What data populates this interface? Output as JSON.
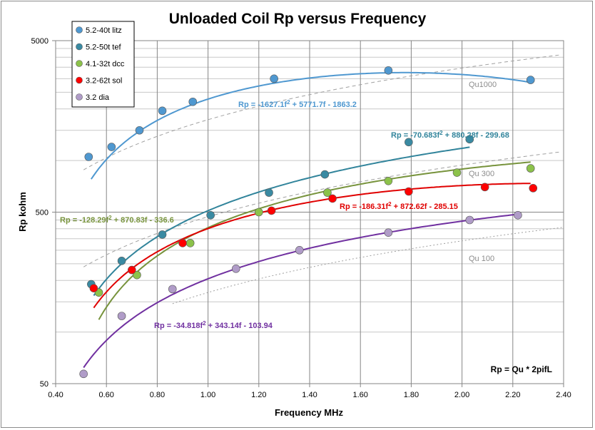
{
  "chart_data": {
    "type": "scatter",
    "title": "Unloaded Coil Rp versus Frequency",
    "xlabel": "Frequency  MHz",
    "ylabel": "Rp  kohm",
    "xlim": [
      0.4,
      2.4
    ],
    "ylim": [
      50,
      5000
    ],
    "yscale": "log",
    "x_ticks": [
      "0.40",
      "0.60",
      "0.80",
      "1.00",
      "1.20",
      "1.40",
      "1.60",
      "1.80",
      "2.00",
      "2.20",
      "2.40"
    ],
    "y_ticks": [
      "50",
      "500",
      "5000"
    ],
    "grid": true,
    "legend_position": "top-left",
    "formula_note": "Rp = Qu * 2pifL",
    "series": [
      {
        "name": "5.2-40t litz",
        "color": "#4f98d0",
        "curve_color": "#4f98d0",
        "x": [
          0.53,
          0.62,
          0.73,
          0.82,
          0.94,
          1.26,
          1.71,
          2.27
        ],
        "y": [
          1050,
          1200,
          1500,
          1950,
          2200,
          3000,
          3350,
          2950
        ],
        "fit": {
          "a": -1627.1,
          "b": 5771.7,
          "c": -1863.2
        },
        "fit_range": [
          0.54,
          2.27
        ],
        "equation": {
          "pre": "Rp = -1627.1f",
          "post": " + 5771.7f - 1863.2"
        }
      },
      {
        "name": "5.2-50t tef",
        "color": "#3a8aa2",
        "curve_color": "#31849b",
        "x": [
          0.54,
          0.66,
          0.82,
          1.01,
          1.24,
          1.46,
          1.79,
          2.03
        ],
        "y": [
          190,
          260,
          370,
          480,
          650,
          830,
          1280,
          1330
        ],
        "fit": {
          "a": -70.683,
          "b": 880.28,
          "c": -299.68
        },
        "fit_range": [
          0.55,
          2.03
        ],
        "equation": {
          "pre": "Rp = -70.683f",
          "post": " + 880.28f - 299.68"
        }
      },
      {
        "name": "4.1-32t dcc",
        "color": "#8cc24a",
        "curve_color": "#77933c",
        "x": [
          0.57,
          0.72,
          0.93,
          1.2,
          1.47,
          1.71,
          1.98,
          2.27
        ],
        "y": [
          170,
          215,
          330,
          500,
          650,
          760,
          850,
          900
        ],
        "fit": {
          "a": -128.29,
          "b": 870.83,
          "c": -336.6
        },
        "fit_range": [
          0.57,
          2.27
        ],
        "equation": {
          "pre": "Rp = -128.29f",
          "post": " + 870.83f - 336.6"
        }
      },
      {
        "name": "3.2-62t sol",
        "color": "#ff0000",
        "curve_color": "#e00000",
        "x": [
          0.55,
          0.7,
          0.9,
          1.25,
          1.49,
          1.79,
          2.09,
          2.28
        ],
        "y": [
          180,
          230,
          330,
          510,
          600,
          660,
          700,
          690
        ],
        "fit": {
          "a": -186.31,
          "b": 872.62,
          "c": -285.15
        },
        "fit_range": [
          0.55,
          2.27
        ],
        "equation": {
          "pre": "Rp = -186.31f",
          "post": " + 872.62f - 285.15"
        }
      },
      {
        "name": "3.2 dia",
        "color": "#b09cc8",
        "curve_color": "#7030a0",
        "x": [
          0.51,
          0.66,
          0.86,
          1.11,
          1.36,
          1.71,
          2.03,
          2.22
        ],
        "y": [
          57,
          124,
          178,
          234,
          300,
          380,
          450,
          480
        ],
        "fit": {
          "a": -34.818,
          "b": 343.14,
          "c": -103.94
        },
        "fit_range": [
          0.51,
          2.22
        ],
        "equation": {
          "pre": "Rp = -34.818f",
          "post": " + 343.14f - 103.94"
        }
      }
    ],
    "qu_lines": [
      {
        "label": "Qu1000",
        "color": "#a0a0a0"
      },
      {
        "label": "Qu 300",
        "color": "#a0a0a0"
      },
      {
        "label": "Qu 100",
        "color": "#a0a0a0"
      }
    ]
  }
}
